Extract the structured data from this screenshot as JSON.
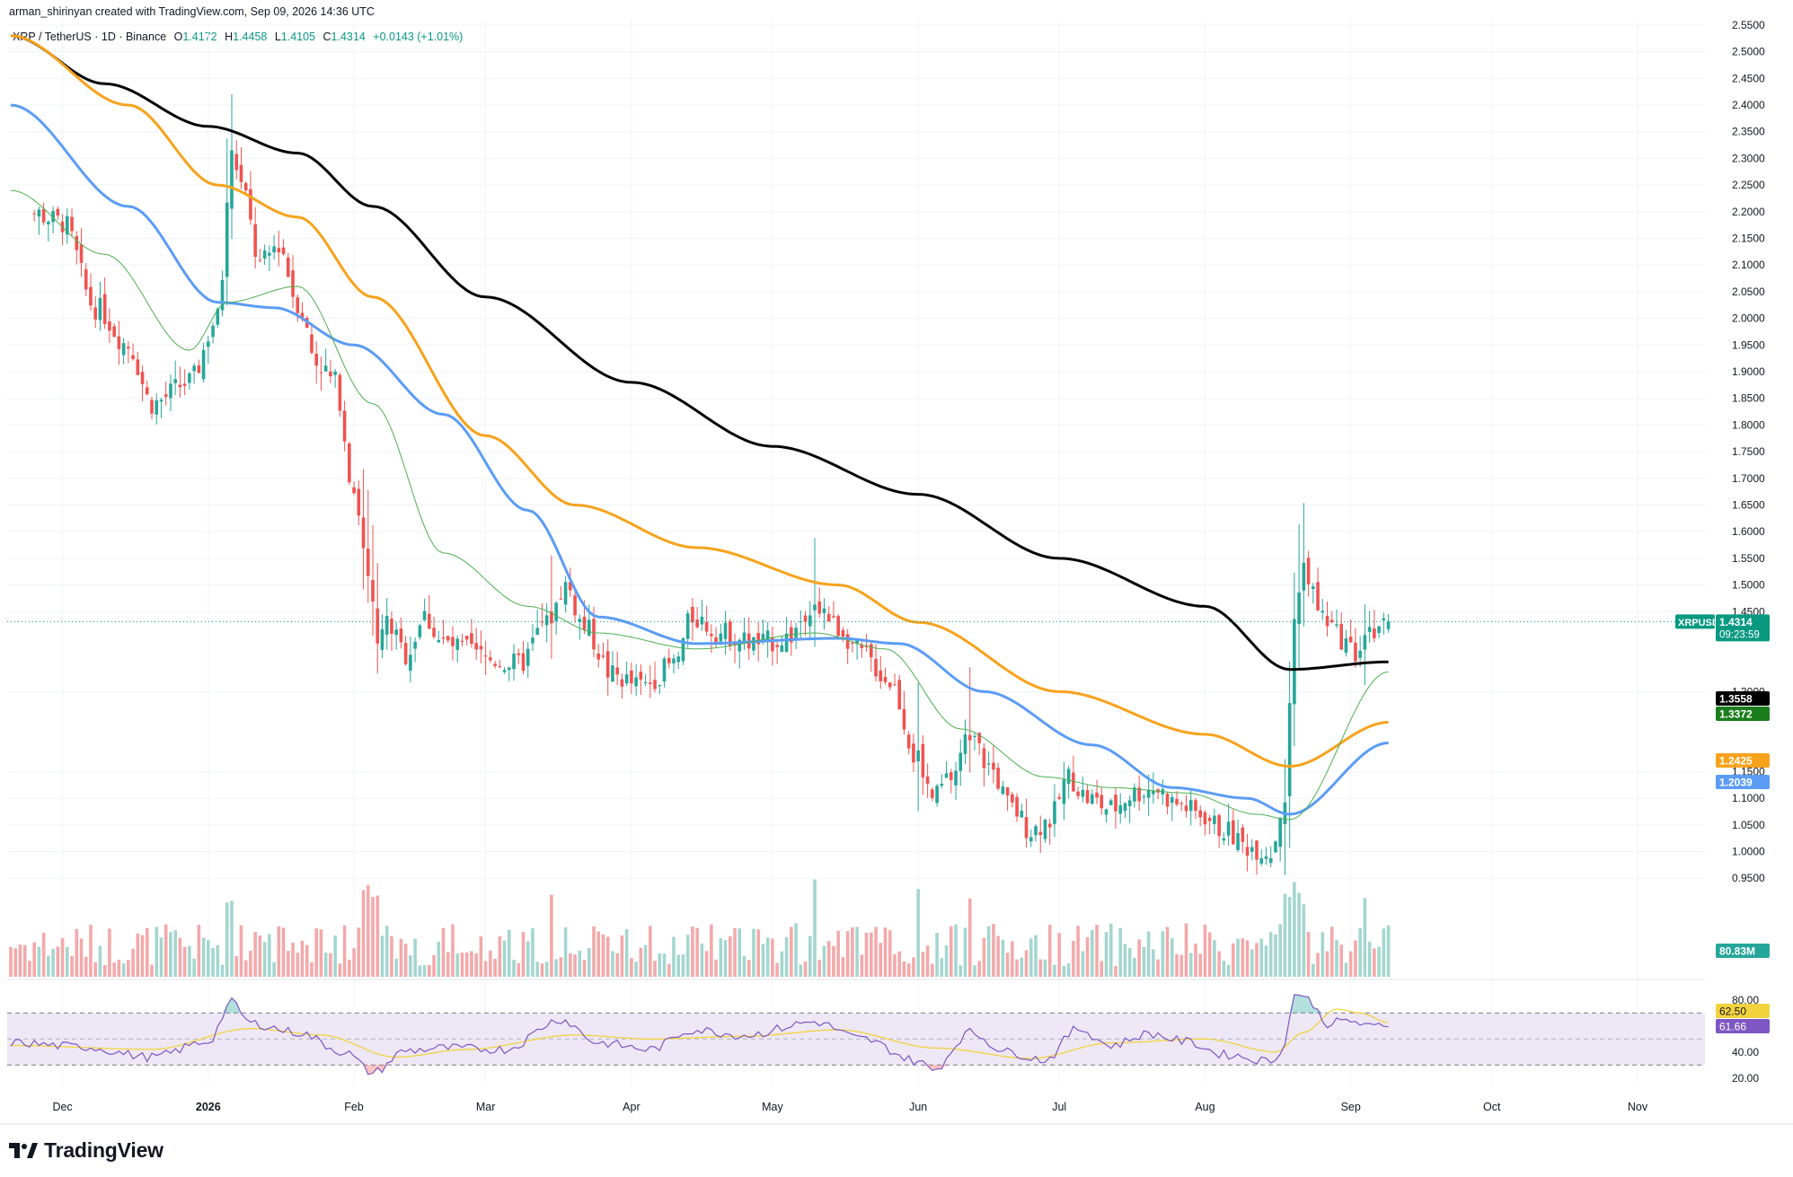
{
  "header": {
    "created_by": "arman_shirinyan created with TradingView.com, Sep 09, 2026 14:36 UTC"
  },
  "legend": {
    "symbol": "XRP / TetherUS · 1D · Binance",
    "o_label": "O",
    "o_value": "1.4172",
    "h_label": "H",
    "h_value": "1.4458",
    "l_label": "L",
    "l_value": "1.4105",
    "c_label": "C",
    "c_value": "1.4314",
    "change": "+0.0143 (+1.01%)"
  },
  "brand": {
    "name": "TradingView",
    "logo_icon": "tradingview-logo-icon"
  },
  "colors": {
    "up": "#26a69a",
    "down": "#ef5350",
    "vol_up": "#a4d6cf",
    "vol_down": "#f3a9aa",
    "ma200": "#000000",
    "ma100": "#f7a21b",
    "ma50": "#5b9cf6",
    "ma20": "#4caf50",
    "rsi": "#7e57c2",
    "rsi_ma": "#f2d33e",
    "rsi_band": "#ede7f6"
  },
  "chart_data": [
    {
      "type": "candlestick",
      "title": "XRP / TetherUS · 1D · Binance",
      "ylim": [
        0.91,
        2.56
      ],
      "y_ticks": [
        "2.5500",
        "2.5000",
        "2.4500",
        "2.4000",
        "2.3500",
        "2.3000",
        "2.2500",
        "2.2000",
        "2.1500",
        "2.1000",
        "2.0500",
        "2.0000",
        "1.9500",
        "1.9000",
        "1.8500",
        "1.8000",
        "1.7500",
        "1.7000",
        "1.6500",
        "1.6000",
        "1.5500",
        "1.5000",
        "1.4500",
        "1.3000",
        "1.1500",
        "1.1000",
        "1.0500",
        "1.0000",
        "0.9500"
      ],
      "x_ticks": [
        "Dec",
        "2026",
        "Feb",
        "Mar",
        "Apr",
        "May",
        "Jun",
        "Jul",
        "Aug",
        "Sep",
        "Oct",
        "Nov"
      ],
      "grid": true,
      "price_anchors": [
        [
          "2025-11-24",
          2.2
        ],
        [
          "2025-12-01",
          2.18
        ],
        [
          "2025-12-08",
          2.02
        ],
        [
          "2025-12-15",
          1.95
        ],
        [
          "2025-12-20",
          1.84
        ],
        [
          "2025-12-28",
          1.88
        ],
        [
          "2026-01-03",
          2.0
        ],
        [
          "2026-01-06",
          2.32
        ],
        [
          "2026-01-08",
          2.25
        ],
        [
          "2026-01-12",
          2.1
        ],
        [
          "2026-01-16",
          2.14
        ],
        [
          "2026-01-20",
          2.03
        ],
        [
          "2026-01-24",
          1.92
        ],
        [
          "2026-01-28",
          1.88
        ],
        [
          "2026-02-01",
          1.68
        ],
        [
          "2026-02-04",
          1.52
        ],
        [
          "2026-02-06",
          1.4
        ],
        [
          "2026-02-08",
          1.43
        ],
        [
          "2026-02-12",
          1.37
        ],
        [
          "2026-02-16",
          1.44
        ],
        [
          "2026-02-20",
          1.39
        ],
        [
          "2026-02-24",
          1.38
        ],
        [
          "2026-03-02",
          1.36
        ],
        [
          "2026-03-08",
          1.35
        ],
        [
          "2026-03-14",
          1.43
        ],
        [
          "2026-03-18",
          1.5
        ],
        [
          "2026-03-22",
          1.42
        ],
        [
          "2026-03-28",
          1.33
        ],
        [
          "2026-04-03",
          1.31
        ],
        [
          "2026-04-10",
          1.35
        ],
        [
          "2026-04-14",
          1.44
        ],
        [
          "2026-04-20",
          1.41
        ],
        [
          "2026-04-28",
          1.39
        ],
        [
          "2026-05-04",
          1.4
        ],
        [
          "2026-05-10",
          1.47
        ],
        [
          "2026-05-15",
          1.42
        ],
        [
          "2026-05-20",
          1.37
        ],
        [
          "2026-05-26",
          1.32
        ],
        [
          "2026-06-01",
          1.17
        ],
        [
          "2026-06-04",
          1.1
        ],
        [
          "2026-06-08",
          1.14
        ],
        [
          "2026-06-12",
          1.22
        ],
        [
          "2026-06-16",
          1.16
        ],
        [
          "2026-06-21",
          1.08
        ],
        [
          "2026-06-25",
          1.04
        ],
        [
          "2026-06-29",
          1.06
        ],
        [
          "2026-07-03",
          1.14
        ],
        [
          "2026-07-07",
          1.1
        ],
        [
          "2026-07-12",
          1.08
        ],
        [
          "2026-07-17",
          1.11
        ],
        [
          "2026-07-21",
          1.12
        ],
        [
          "2026-07-26",
          1.09
        ],
        [
          "2026-07-31",
          1.07
        ],
        [
          "2026-08-05",
          1.04
        ],
        [
          "2026-08-10",
          1.01
        ],
        [
          "2026-08-15",
          1.0
        ],
        [
          "2026-08-18",
          1.1
        ],
        [
          "2026-08-20",
          1.45
        ],
        [
          "2026-08-22",
          1.53
        ],
        [
          "2026-08-26",
          1.44
        ],
        [
          "2026-08-30",
          1.4
        ],
        [
          "2026-09-02",
          1.37
        ],
        [
          "2026-09-05",
          1.42
        ],
        [
          "2026-09-09",
          1.4314
        ]
      ],
      "last_candle": {
        "date": "2026-09-09",
        "open": 1.4172,
        "high": 1.4458,
        "low": 1.4105,
        "close": 1.4314
      },
      "series": [
        {
          "name": "MA 200",
          "color": "#000000",
          "points": [
            [
              "2025-11-20",
              2.53
            ],
            [
              "2025-12-10",
              2.44
            ],
            [
              "2026-01-01",
              2.36
            ],
            [
              "2026-01-20",
              2.31
            ],
            [
              "2026-02-05",
              2.21
            ],
            [
              "2026-03-01",
              2.04
            ],
            [
              "2026-04-01",
              1.88
            ],
            [
              "2026-05-01",
              1.76
            ],
            [
              "2026-06-01",
              1.67
            ],
            [
              "2026-07-01",
              1.55
            ],
            [
              "2026-08-01",
              1.46
            ],
            [
              "2026-08-19",
              1.3416
            ],
            [
              "2026-09-09",
              1.3558
            ]
          ]
        },
        {
          "name": "MA 100",
          "color": "#f7a21b",
          "points": [
            [
              "2025-11-20",
              2.53
            ],
            [
              "2025-12-15",
              2.4
            ],
            [
              "2026-01-03",
              2.25
            ],
            [
              "2026-01-20",
              2.19
            ],
            [
              "2026-02-05",
              2.04
            ],
            [
              "2026-03-01",
              1.78
            ],
            [
              "2026-03-20",
              1.65
            ],
            [
              "2026-04-15",
              1.57
            ],
            [
              "2026-05-15",
              1.5
            ],
            [
              "2026-06-01",
              1.43
            ],
            [
              "2026-07-01",
              1.3
            ],
            [
              "2026-08-01",
              1.22
            ],
            [
              "2026-08-19",
              1.16
            ],
            [
              "2026-09-09",
              1.2425
            ]
          ]
        },
        {
          "name": "MA 50",
          "color": "#5b9cf6",
          "points": [
            [
              "2025-11-20",
              2.4
            ],
            [
              "2025-12-15",
              2.21
            ],
            [
              "2026-01-03",
              2.03
            ],
            [
              "2026-01-15",
              2.02
            ],
            [
              "2026-02-01",
              1.95
            ],
            [
              "2026-02-20",
              1.82
            ],
            [
              "2026-03-10",
              1.64
            ],
            [
              "2026-03-25",
              1.44
            ],
            [
              "2026-04-15",
              1.39
            ],
            [
              "2026-05-15",
              1.4
            ],
            [
              "2026-05-28",
              1.39
            ],
            [
              "2026-06-15",
              1.3
            ],
            [
              "2026-07-08",
              1.2
            ],
            [
              "2026-07-25",
              1.12
            ],
            [
              "2026-08-10",
              1.1
            ],
            [
              "2026-08-19",
              1.07
            ],
            [
              "2026-09-09",
              1.2039
            ]
          ]
        },
        {
          "name": "MA 20",
          "color": "#4caf50",
          "points": [
            [
              "2025-11-20",
              2.24
            ],
            [
              "2025-12-10",
              2.12
            ],
            [
              "2025-12-28",
              1.94
            ],
            [
              "2026-01-05",
              2.03
            ],
            [
              "2026-01-20",
              2.06
            ],
            [
              "2026-02-05",
              1.84
            ],
            [
              "2026-02-20",
              1.56
            ],
            [
              "2026-03-10",
              1.46
            ],
            [
              "2026-03-25",
              1.41
            ],
            [
              "2026-04-15",
              1.38
            ],
            [
              "2026-05-10",
              1.41
            ],
            [
              "2026-05-25",
              1.38
            ],
            [
              "2026-06-10",
              1.23
            ],
            [
              "2026-06-28",
              1.14
            ],
            [
              "2026-07-12",
              1.12
            ],
            [
              "2026-07-28",
              1.11
            ],
            [
              "2026-08-12",
              1.07
            ],
            [
              "2026-08-19",
              1.06
            ],
            [
              "2026-09-09",
              1.3372
            ]
          ]
        }
      ],
      "price_labels": [
        {
          "name": "XRPUSDT",
          "value": "1.4314",
          "countdown": "09:23:59",
          "color": "#089981"
        },
        {
          "name": "MA 200",
          "value": "1.3558",
          "color": "#000000"
        },
        {
          "name": "MA 20",
          "value": "1.3372",
          "color": "#1b7d1b"
        },
        {
          "name": "MA 100",
          "value": "1.2425",
          "color": "#f7a21b"
        },
        {
          "name": "MA 50",
          "value": "1.2039",
          "color": "#5b9cf6"
        }
      ]
    },
    {
      "type": "bar",
      "name": "Volume",
      "last_value": "80.83M",
      "spike_dates": [
        "2026-01-05",
        "2026-01-06",
        "2026-02-03",
        "2026-02-04",
        "2026-02-05",
        "2026-02-06",
        "2026-03-15",
        "2026-05-10",
        "2026-06-01",
        "2026-06-12",
        "2026-08-18",
        "2026-08-19",
        "2026-08-20",
        "2026-08-21",
        "2026-08-22",
        "2026-09-04"
      ]
    },
    {
      "type": "line",
      "name": "RSI",
      "ylim": [
        15,
        95
      ],
      "y_ticks": [
        "80.00",
        "40.00",
        "20.00"
      ],
      "bands": [
        70,
        50,
        30
      ],
      "rsi_value": "61.66",
      "rsi_ma_value": "62.50",
      "rsi_points": [
        [
          "2025-11-20",
          47
        ],
        [
          "2025-12-05",
          44
        ],
        [
          "2025-12-20",
          36
        ],
        [
          "2026-01-01",
          48
        ],
        [
          "2026-01-06",
          78
        ],
        [
          "2026-01-10",
          62
        ],
        [
          "2026-01-20",
          55
        ],
        [
          "2026-01-30",
          40
        ],
        [
          "2026-02-05",
          24
        ],
        [
          "2026-02-12",
          41
        ],
        [
          "2026-02-20",
          43
        ],
        [
          "2026-03-05",
          42
        ],
        [
          "2026-03-17",
          65
        ],
        [
          "2026-03-25",
          47
        ],
        [
          "2026-04-05",
          42
        ],
        [
          "2026-04-14",
          57
        ],
        [
          "2026-04-25",
          53
        ],
        [
          "2026-05-10",
          63
        ],
        [
          "2026-05-20",
          50
        ],
        [
          "2026-06-01",
          33
        ],
        [
          "2026-06-04",
          26
        ],
        [
          "2026-06-12",
          55
        ],
        [
          "2026-06-20",
          40
        ],
        [
          "2026-06-28",
          34
        ],
        [
          "2026-07-05",
          58
        ],
        [
          "2026-07-12",
          45
        ],
        [
          "2026-07-20",
          54
        ],
        [
          "2026-07-28",
          48
        ],
        [
          "2026-08-05",
          38
        ],
        [
          "2026-08-15",
          33
        ],
        [
          "2026-08-18",
          45
        ],
        [
          "2026-08-20",
          86
        ],
        [
          "2026-08-23",
          80
        ],
        [
          "2026-08-27",
          62
        ],
        [
          "2026-09-01",
          64
        ],
        [
          "2026-09-05",
          59
        ],
        [
          "2026-09-09",
          61.66
        ]
      ],
      "rsi_ma_points": [
        [
          "2025-11-20",
          45
        ],
        [
          "2025-12-20",
          42
        ],
        [
          "2026-01-10",
          58
        ],
        [
          "2026-01-25",
          53
        ],
        [
          "2026-02-10",
          36
        ],
        [
          "2026-02-25",
          42
        ],
        [
          "2026-03-20",
          53
        ],
        [
          "2026-04-05",
          50
        ],
        [
          "2026-04-25",
          52
        ],
        [
          "2026-05-15",
          57
        ],
        [
          "2026-06-05",
          43
        ],
        [
          "2026-06-25",
          35
        ],
        [
          "2026-07-12",
          47
        ],
        [
          "2026-08-01",
          50
        ],
        [
          "2026-08-16",
          40
        ],
        [
          "2026-08-22",
          55
        ],
        [
          "2026-08-29",
          73
        ],
        [
          "2026-09-03",
          70
        ],
        [
          "2026-09-09",
          62.5
        ]
      ]
    }
  ]
}
